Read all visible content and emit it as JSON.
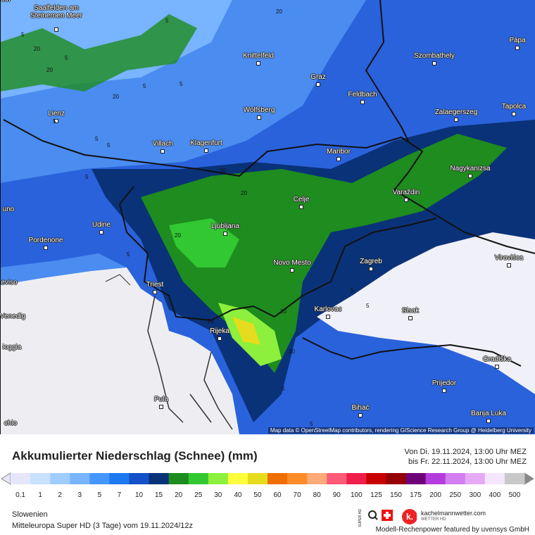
{
  "header": {
    "title": "Akkumulierter Niederschlag (Schnee) (mm)",
    "valid_from": "Von Di. 19.11.2024, 13:00 Uhr MEZ",
    "valid_to": "bis Fr. 22.11.2024, 13:00 Uhr MEZ"
  },
  "map": {
    "attribution": "Map data © OpenStreetMap contributors, rendering GIScience Research Group @ Heidelberg University",
    "cities": [
      "ein",
      "Saalfelden am Steinernen Meer",
      "Knittelfeld",
      "Szombathely",
      "Pápa",
      "Graz",
      "Feldbach",
      "Lienz",
      "Wolfsberg",
      "Zalaegerszeg",
      "Tapolca",
      "Villach",
      "Klagenfurt",
      "Maribor",
      "Nagykanizsa",
      "Varaždin",
      "Celje",
      "uno",
      "Udine",
      "Ljubljana",
      "Pordenone",
      "Novo Mesto",
      "Zagreb",
      "Virovitica",
      "eviso",
      "Triest",
      "Karlovac",
      "Sisak",
      "Venedig",
      "Rijeka",
      "ioggia",
      "Gradiška",
      "Prijedor",
      "Pula",
      "Bihać",
      "Banja Luka",
      "chio"
    ],
    "contour_labels": [
      5,
      5,
      20,
      20,
      5,
      5,
      20,
      5,
      5,
      5,
      20,
      20,
      20,
      5,
      20,
      20,
      5,
      20,
      5,
      5,
      20,
      5,
      5,
      5
    ]
  },
  "legend": {
    "values": [
      0.1,
      1,
      2,
      3,
      5,
      7,
      10,
      15,
      20,
      25,
      30,
      40,
      50,
      60,
      70,
      80,
      90,
      100,
      125,
      150,
      175,
      200,
      250,
      300,
      400,
      500
    ],
    "colors": [
      "#e6e6fa",
      "#c8e1ff",
      "#a0cdff",
      "#78b4ff",
      "#4696ff",
      "#1e78f0",
      "#1450c8",
      "#0a3278",
      "#1e8c1e",
      "#32c832",
      "#8cf03c",
      "#ffff3c",
      "#e6dc1e",
      "#f06e00",
      "#ff8c28",
      "#ffaa78",
      "#ff5a78",
      "#f01e4b",
      "#c80000",
      "#960000",
      "#6e0078",
      "#b43cdc",
      "#d27df0",
      "#e6aaf5",
      "#f5e6ff",
      "#c8c8c8"
    ]
  },
  "footer": {
    "region": "Slowenien",
    "model": "Mitteleuropa Super HD (3 Tage) vom 19.11.2024/12z",
    "logo_super": "SUPER HD",
    "brand": "kachelmannwetter.com",
    "brand_sub": "WETTER HD",
    "credit": "Modell-Rechenpower featured by uvensys GmbH"
  }
}
